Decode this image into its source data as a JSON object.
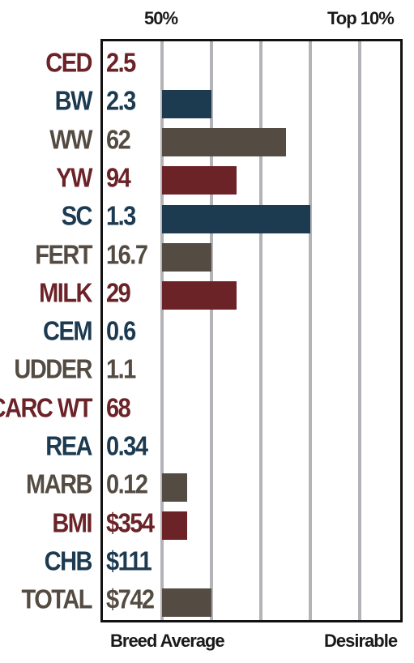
{
  "header": {
    "left_label": "50%",
    "right_label": "Top 10%"
  },
  "footer": {
    "left_label": "Breed Average",
    "right_label": "Desirable"
  },
  "colors": {
    "red": "#6b2328",
    "blue": "#1c3a50",
    "gray": "#544b42",
    "gridline": "#b3b3b8"
  },
  "chart_data": {
    "type": "bar",
    "orientation": "horizontal",
    "xlabel_left": "Breed Average",
    "xlabel_right": "Desirable",
    "top_tick_labels": [
      "50%",
      "Top 10%"
    ],
    "grid": true,
    "gridline_count": 5,
    "value_unit": "gridline steps above breed average",
    "traits": [
      {
        "label": "CED",
        "value_text": "2.5",
        "color": "red",
        "bar": 0
      },
      {
        "label": "BW",
        "value_text": "2.3",
        "color": "blue",
        "bar": 1
      },
      {
        "label": "WW",
        "value_text": "62",
        "color": "gray",
        "bar": 2.5
      },
      {
        "label": "YW",
        "value_text": "94",
        "color": "red",
        "bar": 1.5
      },
      {
        "label": "SC",
        "value_text": "1.3",
        "color": "blue",
        "bar": 3
      },
      {
        "label": "FERT",
        "value_text": "16.7",
        "color": "gray",
        "bar": 1
      },
      {
        "label": "MILK",
        "value_text": "29",
        "color": "red",
        "bar": 1.5
      },
      {
        "label": "CEM",
        "value_text": "0.6",
        "color": "blue",
        "bar": 0
      },
      {
        "label": "UDDER",
        "value_text": "1.1",
        "color": "gray",
        "bar": 0
      },
      {
        "label": "CARC WT",
        "value_text": "68",
        "color": "red",
        "bar": 0
      },
      {
        "label": "REA",
        "value_text": "0.34",
        "color": "blue",
        "bar": 0
      },
      {
        "label": "MARB",
        "value_text": "0.12",
        "color": "gray",
        "bar": 0.5
      },
      {
        "label": "BMI",
        "value_text": "$354",
        "color": "red",
        "bar": 0.5
      },
      {
        "label": "CHB",
        "value_text": "$111",
        "color": "blue",
        "bar": 0
      },
      {
        "label": "TOTAL",
        "value_text": "$742",
        "color": "gray",
        "bar": 1
      }
    ]
  }
}
